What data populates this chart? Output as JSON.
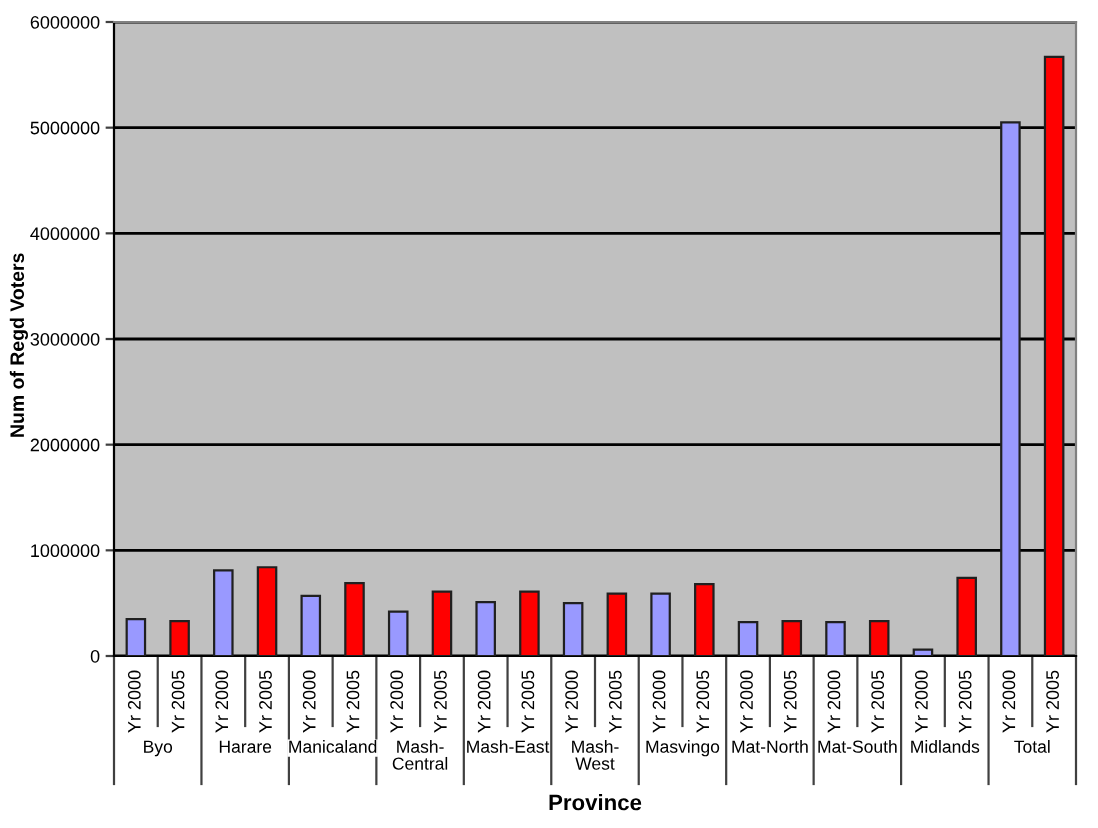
{
  "chart_data": {
    "type": "bar",
    "xlabel": "Province",
    "ylabel": "Num of Regd Voters",
    "categories": [
      "Byo",
      "Harare",
      "Manicaland",
      "Mash-\nCentral",
      "Mash-East",
      "Mash-\nWest",
      "Masvingo",
      "Mat-North",
      "Mat-South",
      "Midlands",
      "Total"
    ],
    "series": [
      {
        "name": "Yr 2000",
        "color": "#9999ff",
        "values": [
          350000,
          810000,
          570000,
          420000,
          510000,
          500000,
          590000,
          320000,
          320000,
          60000,
          5050000
        ]
      },
      {
        "name": "Yr 2005",
        "color": "#ff0000",
        "values": [
          330000,
          840000,
          690000,
          610000,
          610000,
          590000,
          680000,
          330000,
          330000,
          740000,
          5670000
        ]
      }
    ],
    "ylim": [
      0,
      6000000
    ],
    "yticks": [
      0,
      1000000,
      2000000,
      3000000,
      4000000,
      5000000,
      6000000
    ],
    "grid": "y"
  }
}
